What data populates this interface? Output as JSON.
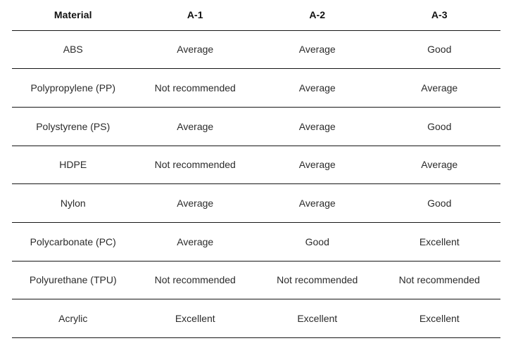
{
  "chart_data": {
    "type": "table",
    "columns": [
      "Material",
      "A-1",
      "A-2",
      "A-3"
    ],
    "rows": [
      [
        "ABS",
        "Average",
        "Average",
        "Good"
      ],
      [
        "Polypropylene (PP)",
        "Not recommended",
        "Average",
        "Average"
      ],
      [
        "Polystyrene (PS)",
        "Average",
        "Average",
        "Good"
      ],
      [
        "HDPE",
        "Not recommended",
        "Average",
        "Average"
      ],
      [
        "Nylon",
        "Average",
        "Average",
        "Good"
      ],
      [
        "Polycarbonate (PC)",
        "Average",
        "Good",
        "Excellent"
      ],
      [
        "Polyurethane (TPU)",
        "Not recommended",
        "Not recommended",
        "Not recommended"
      ],
      [
        "Acrylic",
        "Excellent",
        "Excellent",
        "Excellent"
      ]
    ]
  },
  "colors": {
    "background": "#ffffff",
    "header_text": "#111111",
    "body_text": "#2b2b2b",
    "divider": "#161616"
  }
}
